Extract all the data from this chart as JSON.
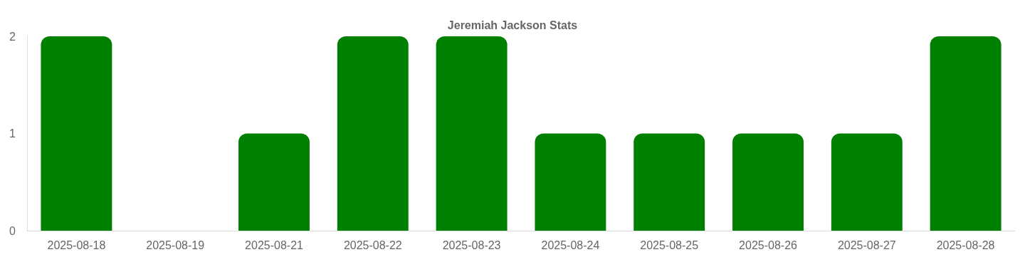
{
  "chart_data": {
    "type": "bar",
    "title": "Jeremiah Jackson Stats",
    "categories": [
      "2025-08-18",
      "2025-08-19",
      "2025-08-21",
      "2025-08-22",
      "2025-08-23",
      "2025-08-24",
      "2025-08-25",
      "2025-08-26",
      "2025-08-27",
      "2025-08-28"
    ],
    "values": [
      2,
      0,
      1,
      2,
      2,
      1,
      1,
      1,
      1,
      2
    ],
    "color": "#008000",
    "ylim": [
      0,
      2
    ],
    "yticks": [
      0,
      1,
      2
    ],
    "grid": false
  }
}
